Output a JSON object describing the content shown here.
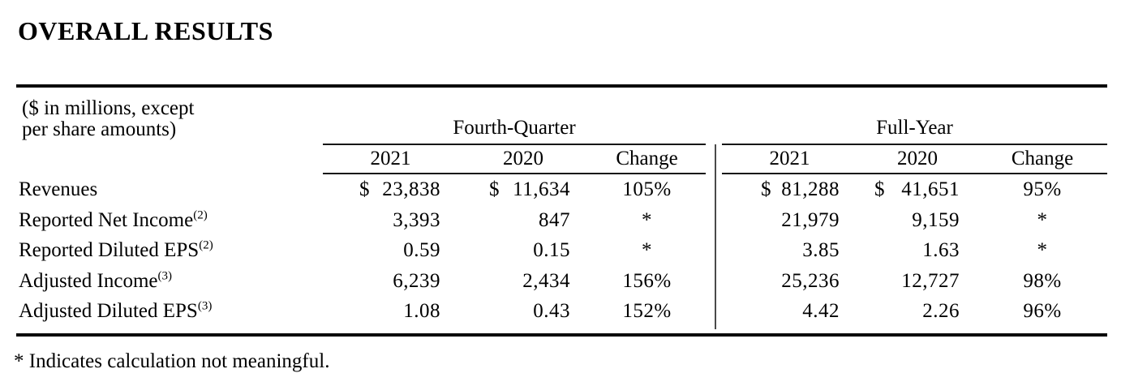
{
  "colors": {
    "background": "#ffffff",
    "text": "#000000",
    "rule": "#0a0a0a",
    "section_divider": "#4a4a4a"
  },
  "page": {
    "title": "OVERALL RESULTS",
    "footnote": "* Indicates calculation not meaningful."
  },
  "table": {
    "units_note": [
      "($ in millions, except",
      "per share amounts)"
    ],
    "groups": [
      "Fourth-Quarter",
      "Full-Year"
    ],
    "subcols": [
      "2021",
      "2020",
      "Change"
    ],
    "rows": [
      {
        "label": "Revenues",
        "ref": "",
        "fq": {
          "cur1": "$",
          "v1": "23,838",
          "cur2": "$",
          "v2": "11,634",
          "chg": "105%"
        },
        "fy": {
          "cur1": "$",
          "v1": "81,288",
          "cur2": "$",
          "v2": "41,651",
          "chg": "95%"
        }
      },
      {
        "label": "Reported Net Income",
        "ref": "(2)",
        "fq": {
          "cur1": "",
          "v1": "3,393",
          "cur2": "",
          "v2": "847",
          "chg": "*"
        },
        "fy": {
          "cur1": "",
          "v1": "21,979",
          "cur2": "",
          "v2": "9,159",
          "chg": "*"
        }
      },
      {
        "label": "Reported Diluted EPS",
        "ref": "(2)",
        "fq": {
          "cur1": "",
          "v1": "0.59",
          "cur2": "",
          "v2": "0.15",
          "chg": "*"
        },
        "fy": {
          "cur1": "",
          "v1": "3.85",
          "cur2": "",
          "v2": "1.63",
          "chg": "*"
        }
      },
      {
        "label": "Adjusted Income",
        "ref": "(3)",
        "fq": {
          "cur1": "",
          "v1": "6,239",
          "cur2": "",
          "v2": "2,434",
          "chg": "156%"
        },
        "fy": {
          "cur1": "",
          "v1": "25,236",
          "cur2": "",
          "v2": "12,727",
          "chg": "98%"
        }
      },
      {
        "label": "Adjusted Diluted EPS",
        "ref": "(3)",
        "fq": {
          "cur1": "",
          "v1": "1.08",
          "cur2": "",
          "v2": "0.43",
          "chg": "152%"
        },
        "fy": {
          "cur1": "",
          "v1": "4.42",
          "cur2": "",
          "v2": "2.26",
          "chg": "96%"
        }
      }
    ]
  }
}
